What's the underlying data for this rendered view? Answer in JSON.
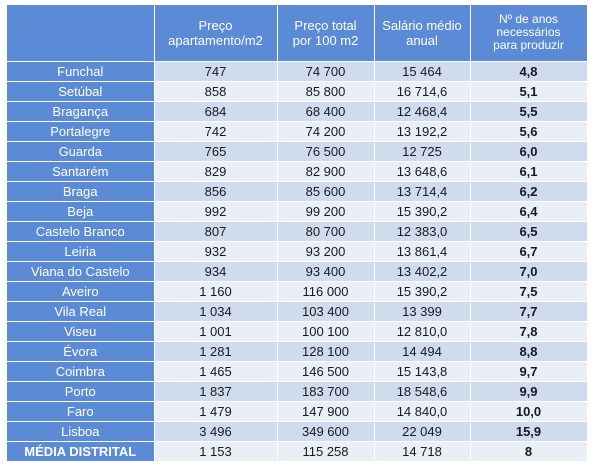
{
  "table": {
    "headers": [
      "",
      "Preço\napartamento/m2",
      "Preço total\npor 100 m2",
      "Salário médio\nanual",
      "Nº de anos\nnecessários\npara produzir"
    ],
    "rows": [
      [
        "Funchal",
        "747",
        "74 700",
        "15 464",
        "4,8"
      ],
      [
        "Setúbal",
        "858",
        "85 800",
        "16 714,6",
        "5,1"
      ],
      [
        "Bragança",
        "684",
        "68 400",
        "12 468,4",
        "5,5"
      ],
      [
        "Portalegre",
        "742",
        "74 200",
        "13 192,2",
        "5,6"
      ],
      [
        "Guarda",
        "765",
        "76 500",
        "12 725",
        "6,0"
      ],
      [
        "Santarém",
        "829",
        "82 900",
        "13 648,6",
        "6,1"
      ],
      [
        "Braga",
        "856",
        "85 600",
        "13 714,4",
        "6,2"
      ],
      [
        "Beja",
        "992",
        "99 200",
        "15 390,2",
        "6,4"
      ],
      [
        "Castelo Branco",
        "807",
        "80 700",
        "12 383,0",
        "6,5"
      ],
      [
        "Leiria",
        "932",
        "93 200",
        "13 861,4",
        "6,7"
      ],
      [
        "Viana do Castelo",
        "934",
        "93 400",
        "13 402,2",
        "7,0"
      ],
      [
        "Aveiro",
        "1 160",
        "116 000",
        "15 390,2",
        "7,5"
      ],
      [
        "Vila Real",
        "1 034",
        "103 400",
        "13 399",
        "7,7"
      ],
      [
        "Viseu",
        "1 001",
        "100 100",
        "12 810,0",
        "7,8"
      ],
      [
        "Évora",
        "1 281",
        "128 100",
        "14 494",
        "8,8"
      ],
      [
        "Coimbra",
        "1 465",
        "146 500",
        "15 143,8",
        "9,7"
      ],
      [
        "Porto",
        "1 837",
        "183 700",
        "18 548,6",
        "9,9"
      ],
      [
        "Faro",
        "1 479",
        "147 900",
        "14 840,0",
        "10,0"
      ],
      [
        "Lisboa",
        "3 496",
        "349 600",
        "22 049",
        "15,9"
      ],
      [
        "MÉDIA DISTRITAL",
        "1 153",
        "115 258",
        "14 718",
        "8"
      ]
    ]
  },
  "colors": {
    "header_blue": "#5b8bd6",
    "row_dark": "#d0dbed",
    "row_light": "#e9eef7"
  }
}
